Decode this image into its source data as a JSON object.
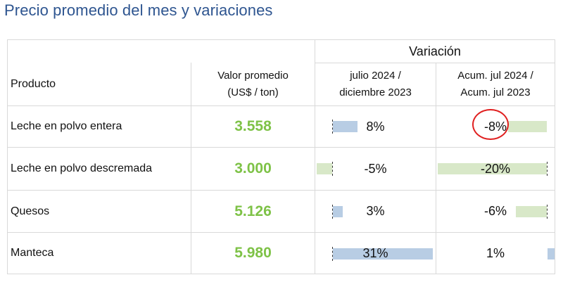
{
  "title": "Precio promedio del mes y variaciones",
  "header": {
    "variacion": "Variación",
    "producto": "Producto",
    "valor_line1": "Valor promedio",
    "valor_line2": "(US$ / ton)",
    "col1_line1": "julio 2024 /",
    "col1_line2": "diciembre 2023",
    "col2_line1": "Acum. jul 2024 /",
    "col2_line2": "Acum. jul 2023"
  },
  "rows": [
    {
      "producto": "Leche en polvo entera",
      "valor": "3.558",
      "var_mes": "8%",
      "var_acum": "-8%"
    },
    {
      "producto": "Leche en polvo descremada",
      "valor": "3.000",
      "var_mes": "-5%",
      "var_acum": "-20%"
    },
    {
      "producto": "Quesos",
      "valor": "5.126",
      "var_mes": "3%",
      "var_acum": "-6%"
    },
    {
      "producto": "Manteca",
      "valor": "5.980",
      "var_mes": "31%",
      "var_acum": "1%"
    }
  ],
  "bars": {
    "var_mes": [
      8,
      -5,
      3,
      31
    ],
    "var_acum": [
      -8,
      -20,
      -6,
      1
    ]
  },
  "colors": {
    "title": "#2e5590",
    "value": "#7ec247",
    "bar_positive": "#b8cde4",
    "bar_negative": "#d8e8c8",
    "highlight_circle": "#e02020"
  },
  "highlight": {
    "row": 0,
    "column": "var_acum"
  }
}
